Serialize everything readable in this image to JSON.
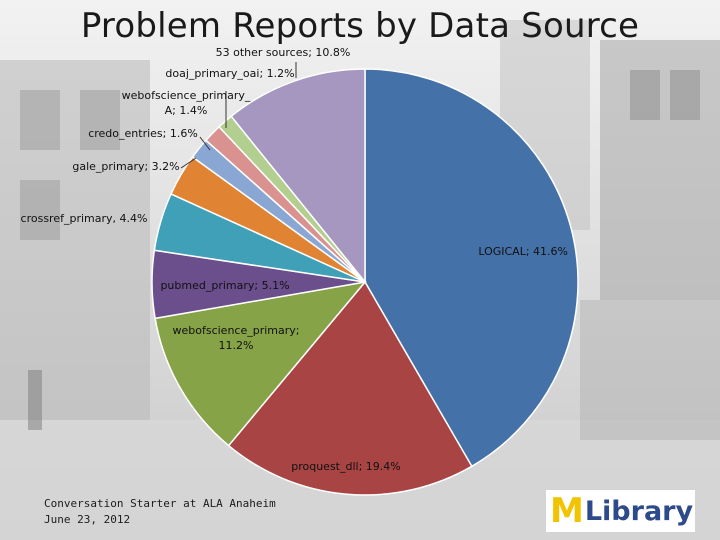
{
  "title": "Problem Reports by Data Source",
  "chart_data": {
    "type": "pie",
    "title": "Problem Reports by Data Source",
    "slices": [
      {
        "label": "LOGICAL; 41.6%",
        "name": "LOGICAL",
        "value": 41.6,
        "color": "#4472a8"
      },
      {
        "label": "proquest_dll; 19.4%",
        "name": "proquest_dll",
        "value": 19.4,
        "color": "#a84443"
      },
      {
        "label": "webofscience_primary; 11.2%",
        "name": "webofscience_primary",
        "value": 11.2,
        "color": "#86a347"
      },
      {
        "label": "pubmed_primary; 5.1%",
        "name": "pubmed_primary",
        "value": 5.1,
        "color": "#6b4e8c"
      },
      {
        "label": "crossref_primary, 4.4%",
        "name": "crossref_primary",
        "value": 4.4,
        "color": "#3fa0b8"
      },
      {
        "label": "gale_primary; 3.2%",
        "name": "gale_primary",
        "value": 3.2,
        "color": "#e08433"
      },
      {
        "label": "credo_entries; 1.6%",
        "name": "credo_entries",
        "value": 1.6,
        "color": "#8aa6d2"
      },
      {
        "label": "webofscience_primary_A; 1.4%",
        "name": "webofscience_primary_A",
        "value": 1.4,
        "color": "#d9928f"
      },
      {
        "label": "doaj_primary_oai; 1.2%",
        "name": "doaj_primary_oai",
        "value": 1.2,
        "color": "#b3cf8f"
      },
      {
        "label": "53 other sources; 10.8%",
        "name": "53 other sources",
        "value": 10.8,
        "color": "#a597c0"
      }
    ]
  },
  "footer": {
    "line1": "Conversation Starter at ALA Anaheim",
    "line2": "June 23, 2012"
  },
  "logo": {
    "mark": "M",
    "text": "Library"
  }
}
